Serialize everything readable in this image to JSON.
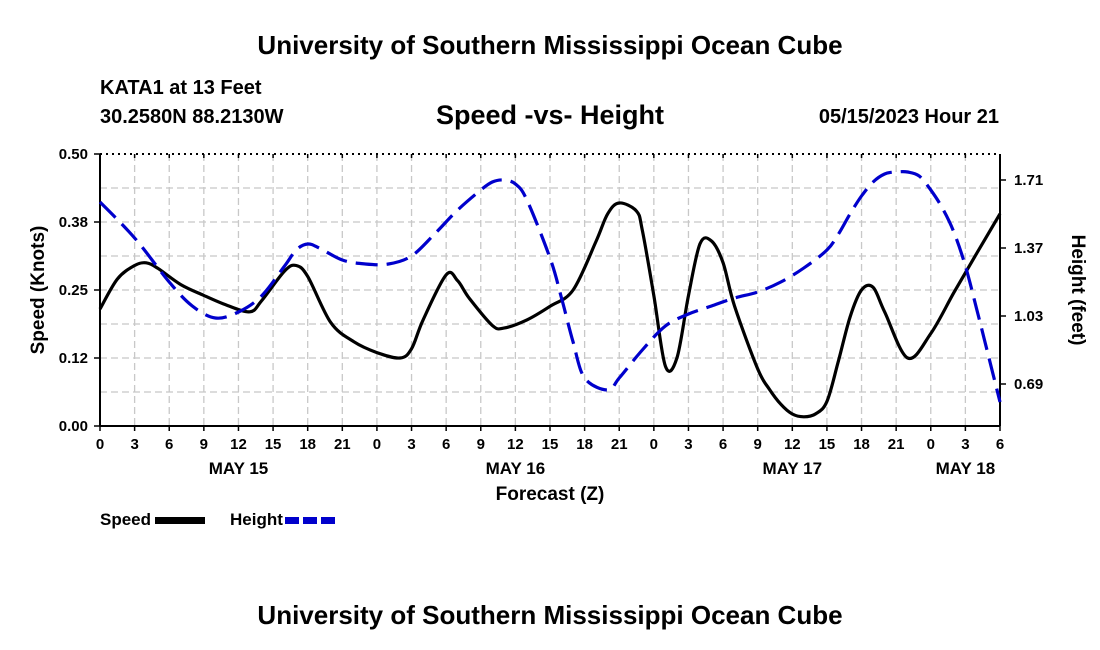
{
  "header": {
    "title_top": "University of Southern Mississippi Ocean Cube",
    "title_bottom": "University of Southern Mississippi Ocean Cube",
    "station": "KATA1 at 13 Feet",
    "coords": "30.2580N  88.2130W",
    "timestamp": "05/15/2023 Hour 21"
  },
  "legend": {
    "speed": "Speed",
    "height": "Height"
  },
  "colors": {
    "speed": "#000000",
    "height": "#0000cc",
    "grid": "#c8c8c8"
  },
  "chart_data": {
    "type": "line",
    "title": "Speed -vs- Height",
    "xlabel": "Forecast (Z)",
    "ylabel": "Speed (Knots)",
    "y2label": "Height (feet)",
    "x_unit": "hours since May 15 00Z",
    "xlim": [
      0,
      78
    ],
    "ylim": [
      0,
      0.5
    ],
    "y2lim": [
      0.48,
      1.84
    ],
    "x_ticks": [
      0,
      3,
      6,
      9,
      12,
      15,
      18,
      21,
      24,
      27,
      30,
      33,
      36,
      39,
      42,
      45,
      48,
      51,
      54,
      57,
      60,
      63,
      66,
      69,
      72,
      75,
      78
    ],
    "x_tick_labels": [
      "0",
      "3",
      "6",
      "9",
      "12",
      "15",
      "18",
      "21",
      "0",
      "3",
      "6",
      "9",
      "12",
      "15",
      "18",
      "21",
      "0",
      "3",
      "6",
      "9",
      "12",
      "15",
      "18",
      "21",
      "0",
      "3",
      "6"
    ],
    "date_labels": [
      {
        "x": 12,
        "label": "MAY 15"
      },
      {
        "x": 36,
        "label": "MAY 16"
      },
      {
        "x": 60,
        "label": "MAY 17"
      },
      {
        "x": 75,
        "label": "MAY 18"
      }
    ],
    "y_ticks": [
      0,
      0.125,
      0.25,
      0.375,
      0.5
    ],
    "y_tick_labels": [
      "0.00",
      "0.12",
      "0.25",
      "0.38",
      "0.50"
    ],
    "y2_ticks": [
      0.69,
      1.03,
      1.37,
      1.71
    ],
    "y2_tick_labels": [
      "0.69",
      "1.03",
      "1.37",
      "1.71"
    ],
    "grid": true,
    "series": [
      {
        "name": "Speed",
        "axis": "left",
        "style": "solid",
        "x": [
          0,
          1.5,
          3,
          4,
          5,
          7,
          9,
          11,
          13,
          14,
          16,
          17,
          18,
          20,
          22,
          24,
          26,
          27,
          28,
          30,
          31,
          32,
          34,
          35,
          37,
          39,
          41,
          43,
          44,
          45,
          46.5,
          47,
          48,
          49,
          50,
          51,
          52,
          53,
          54,
          55,
          57,
          58,
          59,
          60,
          61,
          62,
          63,
          64,
          65,
          66,
          67,
          68,
          70,
          72,
          74,
          76,
          78
        ],
        "y": [
          0.215,
          0.27,
          0.295,
          0.3,
          0.29,
          0.26,
          0.24,
          0.222,
          0.21,
          0.23,
          0.285,
          0.295,
          0.275,
          0.19,
          0.155,
          0.135,
          0.125,
          0.142,
          0.195,
          0.278,
          0.267,
          0.235,
          0.185,
          0.18,
          0.195,
          0.22,
          0.25,
          0.34,
          0.39,
          0.41,
          0.395,
          0.36,
          0.24,
          0.11,
          0.125,
          0.24,
          0.335,
          0.34,
          0.3,
          0.22,
          0.105,
          0.068,
          0.04,
          0.022,
          0.017,
          0.022,
          0.045,
          0.12,
          0.2,
          0.25,
          0.255,
          0.21,
          0.125,
          0.17,
          0.245,
          0.318,
          0.39
        ]
      },
      {
        "name": "Height",
        "axis": "right",
        "style": "dashed",
        "x": [
          0,
          3,
          6,
          8,
          10,
          12,
          14,
          16,
          17,
          18,
          19,
          21,
          23,
          25,
          27,
          29,
          31,
          33,
          34,
          35,
          36,
          37,
          39,
          40,
          41,
          42,
          44,
          45,
          47,
          49,
          51,
          53,
          55,
          57,
          59,
          61,
          63,
          64,
          65,
          66,
          67,
          68,
          69,
          70,
          71,
          72,
          73,
          74,
          75,
          76,
          77,
          78
        ],
        "y": [
          1.6,
          1.42,
          1.2,
          1.08,
          1.02,
          1.05,
          1.13,
          1.28,
          1.36,
          1.39,
          1.37,
          1.31,
          1.29,
          1.29,
          1.33,
          1.44,
          1.56,
          1.66,
          1.7,
          1.71,
          1.69,
          1.61,
          1.32,
          1.12,
          0.9,
          0.72,
          0.66,
          0.72,
          0.86,
          0.98,
          1.04,
          1.08,
          1.12,
          1.15,
          1.2,
          1.27,
          1.36,
          1.44,
          1.54,
          1.63,
          1.7,
          1.74,
          1.75,
          1.75,
          1.73,
          1.66,
          1.57,
          1.45,
          1.28,
          1.06,
          0.83,
          0.6
        ]
      }
    ]
  }
}
